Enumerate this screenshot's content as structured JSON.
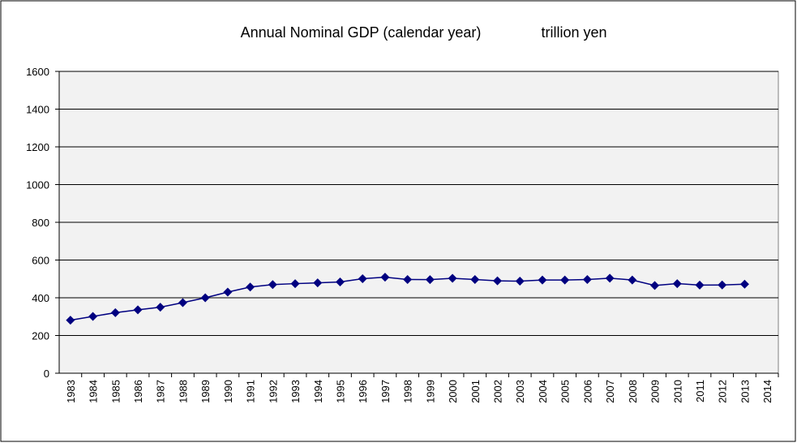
{
  "chart_data": {
    "type": "line",
    "title": "Annual Nominal GDP (calendar year)",
    "subtitle": "trillion yen",
    "categories": [
      "1983",
      "1984",
      "1985",
      "1986",
      "1987",
      "1988",
      "1989",
      "1990",
      "1991",
      "1992",
      "1993",
      "1994",
      "1995",
      "1996",
      "1997",
      "1998",
      "1999",
      "2000",
      "2001",
      "2002",
      "2003",
      "2004",
      "2005",
      "2006",
      "2007",
      "2008",
      "2009",
      "2010",
      "2011",
      "2012",
      "2013",
      "2014"
    ],
    "values": [
      281,
      301,
      321,
      336,
      350,
      374,
      400,
      430,
      457,
      470,
      475,
      479,
      484,
      501,
      509,
      497,
      496,
      503,
      497,
      490,
      488,
      494,
      494,
      497,
      504,
      494,
      465,
      475,
      467,
      468,
      472,
      null
    ],
    "color": "#000080",
    "ylim": [
      0,
      1600
    ],
    "yticks": [
      0,
      200,
      400,
      600,
      800,
      1000,
      1200,
      1400,
      1600
    ],
    "grid": true
  }
}
